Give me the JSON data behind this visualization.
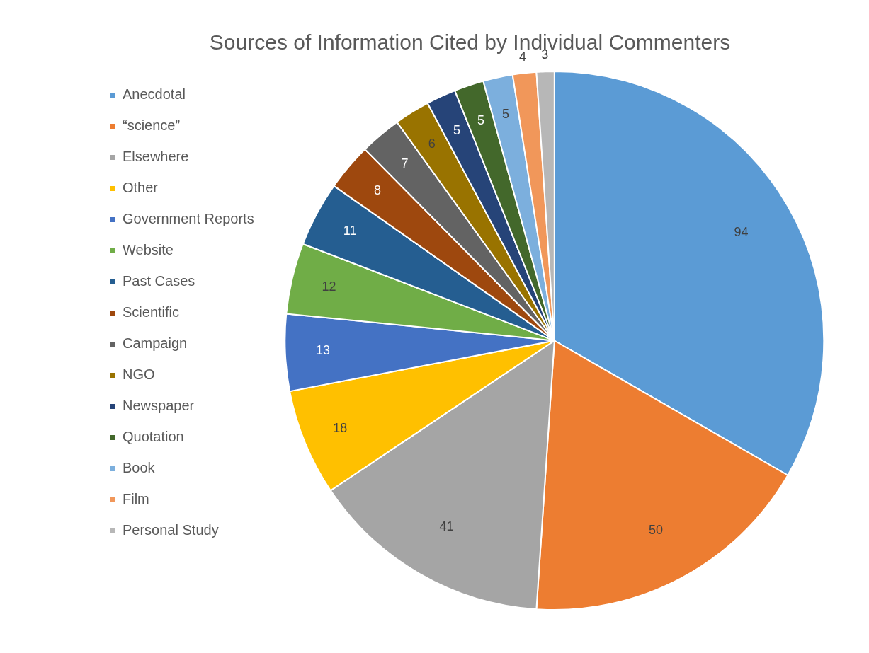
{
  "chart_data": {
    "type": "pie",
    "title": "Sources of Information Cited by Individual Commenters",
    "categories": [
      "Anecdotal",
      "“science”",
      "Elsewhere",
      "Other",
      "Government Reports",
      "Website",
      "Past Cases",
      "Scientific",
      "Campaign",
      "NGO",
      "Newspaper",
      "Quotation",
      "Book",
      "Film",
      "Personal Study"
    ],
    "values": [
      94,
      50,
      41,
      18,
      13,
      12,
      11,
      8,
      7,
      6,
      5,
      5,
      5,
      4,
      3
    ],
    "colors": [
      "#5b9bd5",
      "#ed7d31",
      "#a5a5a5",
      "#ffc000",
      "#4472c4",
      "#70ad47",
      "#255e91",
      "#9e480e",
      "#636363",
      "#997300",
      "#264478",
      "#43682b",
      "#7cafdd",
      "#f1975a",
      "#b7b7b7"
    ],
    "data_labels": true,
    "legend": "left"
  }
}
